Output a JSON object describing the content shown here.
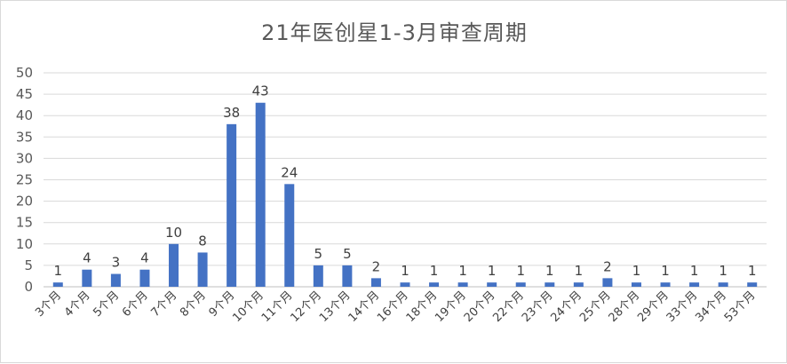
{
  "chart_data": {
    "type": "bar",
    "title": "21年医创星1-3月审查周期",
    "xlabel": "",
    "ylabel": "",
    "ylim": [
      0,
      50
    ],
    "yticks": [
      0,
      5,
      10,
      15,
      20,
      25,
      30,
      35,
      40,
      45,
      50
    ],
    "grid": true,
    "legend": "none",
    "bar_color": "#4472c4",
    "categories": [
      "3个月",
      "4个月",
      "5个月",
      "6个月",
      "7个月",
      "8个月",
      "9个月",
      "10个月",
      "11个月",
      "12个月",
      "13个月",
      "14个月",
      "16个月",
      "18个月",
      "19个月",
      "20个月",
      "22个月",
      "23个月",
      "24个月",
      "25个月",
      "28个月",
      "29个月",
      "33个月",
      "34个月",
      "53个月"
    ],
    "values": [
      1,
      4,
      3,
      4,
      10,
      8,
      38,
      43,
      24,
      5,
      5,
      2,
      1,
      1,
      1,
      1,
      1,
      1,
      1,
      2,
      1,
      1,
      1,
      1,
      1
    ]
  }
}
